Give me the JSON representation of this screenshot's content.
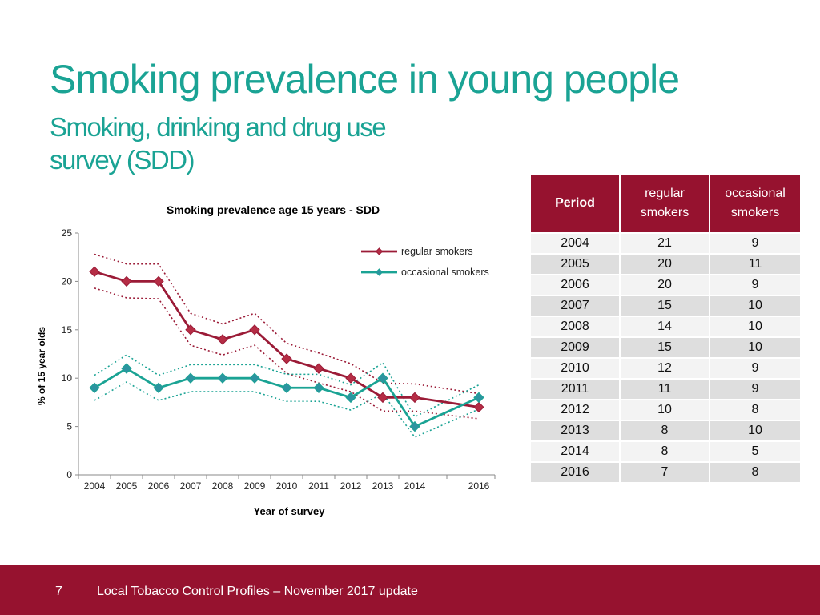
{
  "slide": {
    "title": "Smoking prevalence in young people",
    "subtitle_line1": "Smoking, drinking and drug use",
    "subtitle_line2": "survey (SDD)"
  },
  "colors": {
    "teal": "#1aa394",
    "crimson": "#96122f",
    "regular_series": "#9b1b37",
    "occasional_series": "#1aa394",
    "regular_marker": "#b52d45",
    "occasional_marker": "#2c94a0"
  },
  "chart_data": {
    "type": "line",
    "title": "Smoking prevalence age 15 years - SDD",
    "xlabel": "Year of survey",
    "ylabel": "% of 15 year olds",
    "ylim": [
      0,
      25
    ],
    "yticks": [
      0,
      5,
      10,
      15,
      20,
      25
    ],
    "x": [
      "2004",
      "2005",
      "2006",
      "2007",
      "2008",
      "2009",
      "2010",
      "2011",
      "2012",
      "2013",
      "2014",
      "2016"
    ],
    "x_values": [
      2004,
      2005,
      2006,
      2007,
      2008,
      2009,
      2010,
      2011,
      2012,
      2013,
      2014,
      2016
    ],
    "legend_position": "top-right",
    "series": [
      {
        "name": "regular smokers",
        "values": [
          21,
          20,
          20,
          15,
          14,
          15,
          12,
          11,
          10,
          8,
          8,
          7
        ],
        "upper": [
          22.8,
          21.8,
          21.8,
          16.7,
          15.6,
          16.7,
          13.6,
          12.6,
          11.5,
          9.5,
          9.4,
          8.4
        ],
        "lower": [
          19.3,
          18.3,
          18.2,
          13.4,
          12.4,
          13.4,
          10.5,
          9.5,
          8.6,
          6.6,
          6.6,
          5.8
        ]
      },
      {
        "name": "occasional smokers",
        "values": [
          9,
          11,
          9,
          10,
          10,
          10,
          9,
          9,
          8,
          10,
          5,
          8
        ],
        "upper": [
          10.3,
          12.4,
          10.3,
          11.4,
          11.4,
          11.4,
          10.4,
          10.4,
          9.3,
          11.6,
          6.0,
          9.3
        ],
        "lower": [
          7.7,
          9.6,
          7.7,
          8.6,
          8.6,
          8.6,
          7.6,
          7.6,
          6.7,
          8.4,
          3.9,
          6.8
        ]
      }
    ]
  },
  "table": {
    "headers": {
      "period": "Period",
      "regular_line1": "regular",
      "regular_line2": "smokers",
      "occasional_line1": "occasional",
      "occasional_line2": "smokers"
    },
    "rows": [
      {
        "period": "2004",
        "regular": "21",
        "occasional": "9"
      },
      {
        "period": "2005",
        "regular": "20",
        "occasional": "11"
      },
      {
        "period": "2006",
        "regular": "20",
        "occasional": "9"
      },
      {
        "period": "2007",
        "regular": "15",
        "occasional": "10"
      },
      {
        "period": "2008",
        "regular": "14",
        "occasional": "10"
      },
      {
        "period": "2009",
        "regular": "15",
        "occasional": "10"
      },
      {
        "period": "2010",
        "regular": "12",
        "occasional": "9"
      },
      {
        "period": "2011",
        "regular": "11",
        "occasional": "9"
      },
      {
        "period": "2012",
        "regular": "10",
        "occasional": "8"
      },
      {
        "period": "2013",
        "regular": "8",
        "occasional": "10"
      },
      {
        "period": "2014",
        "regular": "8",
        "occasional": "5"
      },
      {
        "period": "2016",
        "regular": "7",
        "occasional": "8"
      }
    ]
  },
  "footer": {
    "page_number": "7",
    "text": "Local Tobacco Control Profiles – November 2017 update"
  }
}
